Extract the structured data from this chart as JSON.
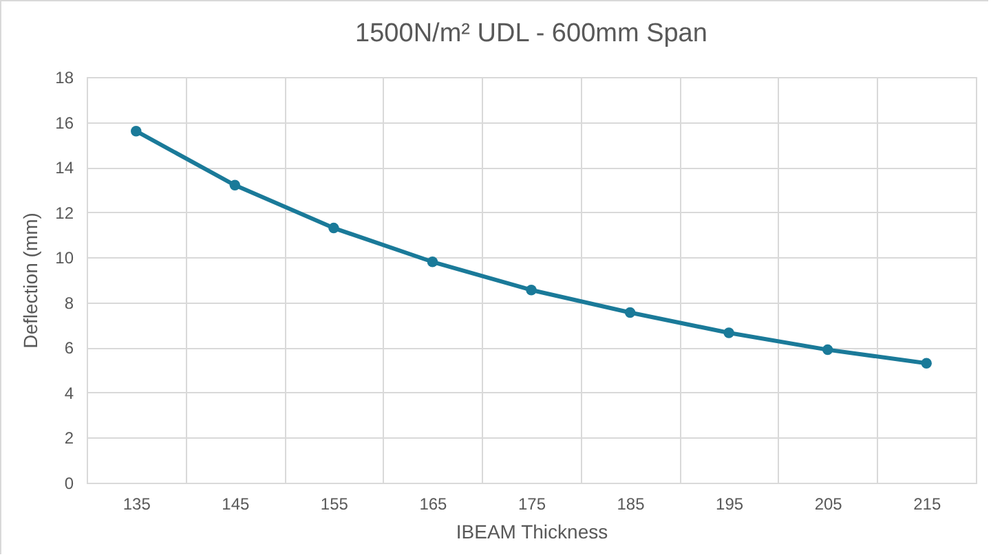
{
  "chart_data": {
    "type": "line",
    "title": "1500N/m² UDL - 600mm Span",
    "xlabel": "IBEAM Thickness",
    "ylabel": "Deflection (mm)",
    "categories": [
      "135",
      "145",
      "155",
      "165",
      "175",
      "185",
      "195",
      "205",
      "215"
    ],
    "series": [
      {
        "color": "#1a7a99",
        "values": [
          15.6,
          13.2,
          11.3,
          9.8,
          8.55,
          7.55,
          6.65,
          5.9,
          5.3
        ]
      }
    ],
    "ylim": [
      0,
      18
    ],
    "yticks": [
      0,
      2,
      4,
      6,
      8,
      10,
      12,
      14,
      16,
      18
    ],
    "grid": true,
    "marker": "circle",
    "line_style": "solid"
  }
}
